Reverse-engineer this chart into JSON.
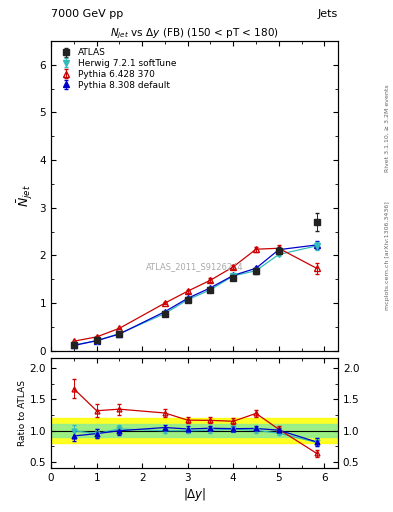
{
  "title_top": "7000 GeV pp",
  "title_top_right": "Jets",
  "plot_title": "N$_{jet}$ vs $\\Delta$y (FB) (150 < pT < 180)",
  "watermark": "ATLAS_2011_S9126244",
  "right_label_top": "Rivet 3.1.10, ≥ 3.2M events",
  "right_label_bot": "mcplots.cern.ch [arXiv:1306.3436]",
  "xlabel": "|$\\Delta y$|",
  "ylabel_main": "$\\bar{N}_{jet}$",
  "ylabel_ratio": "Ratio to ATLAS",
  "x_data": [
    0.5,
    1.0,
    1.5,
    2.5,
    3.0,
    3.5,
    4.0,
    4.5,
    5.0,
    5.83
  ],
  "atlas_y": [
    0.12,
    0.22,
    0.35,
    0.78,
    1.07,
    1.27,
    1.53,
    1.67,
    2.1,
    2.7
  ],
  "atlas_yerr": [
    0.01,
    0.015,
    0.02,
    0.03,
    0.04,
    0.04,
    0.05,
    0.06,
    0.07,
    0.18
  ],
  "herwig_y": [
    0.12,
    0.21,
    0.36,
    0.78,
    1.07,
    1.28,
    1.57,
    1.68,
    2.02,
    2.2
  ],
  "herwig_yerr": [
    0.004,
    0.007,
    0.01,
    0.015,
    0.02,
    0.025,
    0.03,
    0.035,
    0.04,
    0.09
  ],
  "pythia6_y": [
    0.2,
    0.29,
    0.47,
    1.0,
    1.25,
    1.48,
    1.76,
    2.13,
    2.15,
    1.73
  ],
  "pythia6_yerr": [
    0.008,
    0.01,
    0.015,
    0.025,
    0.03,
    0.04,
    0.045,
    0.055,
    0.06,
    0.11
  ],
  "pythia8_y": [
    0.11,
    0.21,
    0.35,
    0.82,
    1.1,
    1.32,
    1.58,
    1.73,
    2.12,
    2.22
  ],
  "pythia8_yerr": [
    0.004,
    0.007,
    0.01,
    0.016,
    0.02,
    0.025,
    0.03,
    0.035,
    0.04,
    0.09
  ],
  "atlas_color": "#222222",
  "herwig_color": "#33bbbb",
  "pythia6_color": "#cc0000",
  "pythia8_color": "#0000cc",
  "band_yellow": [
    0.8,
    1.2
  ],
  "band_green": [
    0.9,
    1.1
  ],
  "ylim_main": [
    0.0,
    6.5
  ],
  "ylim_ratio": [
    0.4,
    2.15
  ],
  "yticks_main": [
    0,
    1,
    2,
    3,
    4,
    5,
    6
  ],
  "yticks_ratio": [
    0.5,
    1.0,
    1.5,
    2.0
  ],
  "xticks": [
    0,
    1,
    2,
    3,
    4,
    5,
    6
  ],
  "xlim": [
    0.0,
    6.3
  ]
}
